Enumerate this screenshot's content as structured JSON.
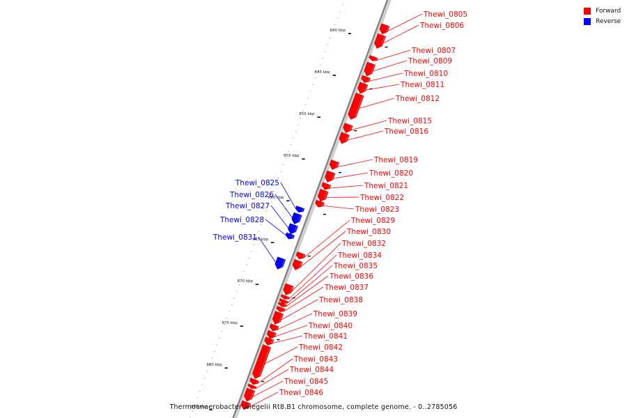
{
  "caption": "Thermoanaerobacter wiegelii Rt8.B1 chromosome, complete genome. - 0..2785056",
  "legend": {
    "items": [
      {
        "label": "Forward",
        "color": "#ff0000"
      },
      {
        "label": "Reverse",
        "color": "#0000ff"
      }
    ]
  },
  "colors": {
    "forward": "#ff0000",
    "reverse": "#0000ff",
    "backbone": "#808080"
  },
  "axis": {
    "unit": "kbp",
    "ticks": [
      {
        "kbp": 840,
        "label": "840 kbp"
      },
      {
        "kbp": 845,
        "label": "845 kbp"
      },
      {
        "kbp": 850,
        "label": "850 kbp"
      },
      {
        "kbp": 855,
        "label": "855 kbp"
      },
      {
        "kbp": 860,
        "label": "860 kbp"
      },
      {
        "kbp": 865,
        "label": "865 kbp"
      },
      {
        "kbp": 870,
        "label": "870 kbp"
      },
      {
        "kbp": 875,
        "label": "875 kbp"
      },
      {
        "kbp": 880,
        "label": "880 kbp"
      },
      {
        "kbp": 885,
        "label": "885 kbp"
      }
    ]
  },
  "genes": [
    {
      "name": "Thewi_0805",
      "strand": "forward",
      "start_kbp": 837.7,
      "end_kbp": 838.8
    },
    {
      "name": "Thewi_0806",
      "strand": "forward",
      "start_kbp": 838.9,
      "end_kbp": 840.5
    },
    {
      "name": "Thewi_0807",
      "strand": "forward",
      "start_kbp": 841.5,
      "end_kbp": 842.0
    },
    {
      "name": "Thewi_0809",
      "strand": "forward",
      "start_kbp": 842.3,
      "end_kbp": 843.8
    },
    {
      "name": "Thewi_0810",
      "strand": "forward",
      "start_kbp": 843.9,
      "end_kbp": 844.6
    },
    {
      "name": "Thewi_0811",
      "strand": "forward",
      "start_kbp": 844.7,
      "end_kbp": 845.9
    },
    {
      "name": "Thewi_0812",
      "strand": "forward",
      "start_kbp": 846.0,
      "end_kbp": 849.0
    },
    {
      "name": "Thewi_0815",
      "strand": "forward",
      "start_kbp": 849.6,
      "end_kbp": 850.6
    },
    {
      "name": "Thewi_0816",
      "strand": "forward",
      "start_kbp": 850.7,
      "end_kbp": 851.9
    },
    {
      "name": "Thewi_0819",
      "strand": "forward",
      "start_kbp": 854.0,
      "end_kbp": 855.0
    },
    {
      "name": "Thewi_0820",
      "strand": "forward",
      "start_kbp": 855.3,
      "end_kbp": 856.5
    },
    {
      "name": "Thewi_0821",
      "strand": "forward",
      "start_kbp": 856.7,
      "end_kbp": 857.4
    },
    {
      "name": "Thewi_0822",
      "strand": "forward",
      "start_kbp": 857.5,
      "end_kbp": 858.8
    },
    {
      "name": "Thewi_0823",
      "strand": "forward",
      "start_kbp": 858.8,
      "end_kbp": 859.5
    },
    {
      "name": "Thewi_0825",
      "strand": "reverse",
      "start_kbp": 860.2,
      "end_kbp": 860.8
    },
    {
      "name": "Thewi_0826",
      "strand": "reverse",
      "start_kbp": 861.0,
      "end_kbp": 862.2
    },
    {
      "name": "Thewi_0827",
      "strand": "reverse",
      "start_kbp": 862.3,
      "end_kbp": 863.4
    },
    {
      "name": "Thewi_0828",
      "strand": "reverse",
      "start_kbp": 863.4,
      "end_kbp": 864.0
    },
    {
      "name": "Thewi_0829",
      "strand": "forward",
      "start_kbp": 865.0,
      "end_kbp": 865.7
    },
    {
      "name": "Thewi_0830",
      "strand": "forward",
      "start_kbp": 865.9,
      "end_kbp": 867.0
    },
    {
      "name": "Thewi_0831",
      "strand": "reverse",
      "start_kbp": 866.3,
      "end_kbp": 867.6
    },
    {
      "name": "Thewi_0832",
      "strand": "forward",
      "start_kbp": 868.8,
      "end_kbp": 870.0
    },
    {
      "name": "Thewi_0834",
      "strand": "forward",
      "start_kbp": 870.1,
      "end_kbp": 870.5
    },
    {
      "name": "Thewi_0835",
      "strand": "forward",
      "start_kbp": 870.6,
      "end_kbp": 871.0
    },
    {
      "name": "Thewi_0836",
      "strand": "forward",
      "start_kbp": 871.0,
      "end_kbp": 871.4
    },
    {
      "name": "Thewi_0837",
      "strand": "forward",
      "start_kbp": 871.5,
      "end_kbp": 872.0
    },
    {
      "name": "Thewi_0838",
      "strand": "forward",
      "start_kbp": 872.1,
      "end_kbp": 873.5
    },
    {
      "name": "Thewi_0839",
      "strand": "forward",
      "start_kbp": 873.6,
      "end_kbp": 874.3
    },
    {
      "name": "Thewi_0840",
      "strand": "forward",
      "start_kbp": 874.4,
      "end_kbp": 875.2
    },
    {
      "name": "Thewi_0841",
      "strand": "forward",
      "start_kbp": 875.2,
      "end_kbp": 876.0
    },
    {
      "name": "Thewi_0842",
      "strand": "forward",
      "start_kbp": 876.1,
      "end_kbp": 880.0
    },
    {
      "name": "Thewi_0843",
      "strand": "forward",
      "start_kbp": 880.1,
      "end_kbp": 880.7
    },
    {
      "name": "Thewi_0844",
      "strand": "forward",
      "start_kbp": 880.8,
      "end_kbp": 881.2
    },
    {
      "name": "Thewi_0845",
      "strand": "forward",
      "start_kbp": 881.3,
      "end_kbp": 882.7
    },
    {
      "name": "Thewi_0846",
      "strand": "forward",
      "start_kbp": 882.8,
      "end_kbp": 883.7
    }
  ]
}
